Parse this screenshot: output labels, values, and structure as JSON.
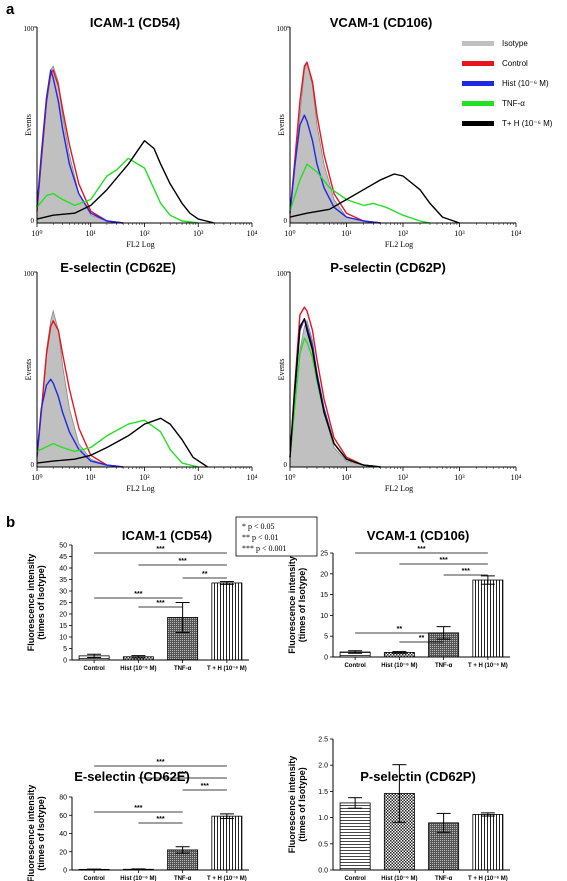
{
  "panel_labels": [
    "a",
    "b"
  ],
  "legend": {
    "entries": [
      {
        "label": "Isotype",
        "color": "#c0c0c0"
      },
      {
        "label": "Control",
        "color": "#e8141e"
      },
      {
        "label": "Hist (10⁻⁶ M)",
        "color": "#1e28e6"
      },
      {
        "label": "TNF-α",
        "color": "#22e022"
      },
      {
        "label": "T+ H (10⁻⁶ M)",
        "color": "#000000"
      }
    ]
  },
  "significance_key": [
    "* p < 0.05",
    "** p < 0.01",
    "*** p < 0.001"
  ],
  "chart_data": [
    {
      "type": "line",
      "title": "ICAM-1 (CD54)",
      "xlabel": "FL2 Log",
      "ylabel": "Events",
      "x_scale": "log",
      "xlim": [
        1,
        10000
      ],
      "ylim": [
        0,
        100
      ],
      "x_ticks": [
        "10⁰",
        "10¹",
        "10²",
        "10³",
        "10⁴"
      ],
      "y_ticks": [
        "0",
        "100"
      ],
      "series": [
        {
          "name": "Isotype",
          "x": [
            1,
            1.2,
            1.5,
            1.8,
            2,
            2.5,
            3,
            4,
            6,
            10,
            20,
            40
          ],
          "y": [
            5,
            30,
            60,
            78,
            80,
            72,
            55,
            35,
            15,
            4,
            1,
            0
          ]
        },
        {
          "name": "Control",
          "x": [
            1,
            1.2,
            1.5,
            1.8,
            2,
            2.5,
            3,
            4,
            6,
            10,
            20,
            40
          ],
          "y": [
            6,
            32,
            62,
            76,
            78,
            70,
            58,
            40,
            20,
            6,
            1,
            0
          ]
        },
        {
          "name": "Hist (10⁻⁶ M)",
          "x": [
            1,
            1.2,
            1.5,
            1.8,
            2,
            2.5,
            3,
            4,
            6,
            10,
            20,
            40
          ],
          "y": [
            8,
            35,
            64,
            78,
            74,
            62,
            48,
            30,
            15,
            5,
            1,
            0
          ]
        },
        {
          "name": "TNF-α",
          "x": [
            1,
            1.5,
            2,
            3,
            5,
            10,
            20,
            30,
            50,
            100,
            200,
            300,
            500,
            1000
          ],
          "y": [
            8,
            14,
            15,
            12,
            9,
            12,
            24,
            27,
            33,
            28,
            10,
            4,
            1,
            0
          ]
        },
        {
          "name": "T+ H (10⁻⁶ M)",
          "x": [
            1,
            2,
            5,
            10,
            20,
            50,
            100,
            150,
            200,
            300,
            500,
            700,
            1000,
            2000
          ],
          "y": [
            2,
            4,
            5,
            9,
            17,
            30,
            42,
            38,
            30,
            20,
            10,
            5,
            2,
            0
          ]
        }
      ]
    },
    {
      "type": "line",
      "title": "VCAM-1 (CD106)",
      "xlabel": "FL2 Log",
      "ylabel": "Events",
      "x_scale": "log",
      "xlim": [
        1,
        10000
      ],
      "ylim": [
        0,
        100
      ],
      "x_ticks": [
        "10⁰",
        "10¹",
        "10²",
        "10³",
        "10⁴"
      ],
      "y_ticks": [
        "0",
        "100"
      ],
      "series": [
        {
          "name": "Isotype",
          "x": [
            1,
            1.2,
            1.5,
            1.8,
            2,
            2.5,
            3,
            4,
            6,
            10,
            20,
            40
          ],
          "y": [
            4,
            25,
            55,
            78,
            82,
            70,
            50,
            30,
            12,
            3,
            1,
            0
          ]
        },
        {
          "name": "Control",
          "x": [
            1,
            1.2,
            1.5,
            1.8,
            2,
            2.5,
            3,
            4,
            6,
            10,
            20,
            40
          ],
          "y": [
            5,
            30,
            62,
            80,
            82,
            72,
            55,
            35,
            15,
            5,
            1,
            0
          ]
        },
        {
          "name": "Hist (10⁻⁶ M)",
          "x": [
            1,
            1.2,
            1.5,
            1.8,
            2,
            2.5,
            3,
            4,
            6,
            10,
            20,
            40
          ],
          "y": [
            5,
            28,
            50,
            55,
            52,
            42,
            30,
            18,
            8,
            3,
            1,
            0
          ]
        },
        {
          "name": "TNF-α",
          "x": [
            1,
            1.5,
            2,
            3,
            5,
            10,
            20,
            30,
            50,
            100,
            200,
            300
          ],
          "y": [
            6,
            22,
            30,
            26,
            18,
            12,
            9,
            10,
            8,
            4,
            1,
            0
          ]
        },
        {
          "name": "T+ H (10⁻⁶ M)",
          "x": [
            1,
            2,
            5,
            10,
            20,
            40,
            70,
            100,
            200,
            300,
            500,
            1000
          ],
          "y": [
            3,
            5,
            7,
            12,
            17,
            22,
            25,
            24,
            17,
            10,
            3,
            0
          ]
        }
      ]
    },
    {
      "type": "line",
      "title": "E-selectin (CD62E)",
      "xlabel": "FL2 Log",
      "ylabel": "Events",
      "x_scale": "log",
      "xlim": [
        1,
        10000
      ],
      "ylim": [
        0,
        100
      ],
      "x_ticks": [
        "10⁰",
        "10¹",
        "10²",
        "10³",
        "10⁴"
      ],
      "y_ticks": [
        "0",
        "100"
      ],
      "series": [
        {
          "name": "Isotype",
          "x": [
            1,
            1.2,
            1.5,
            1.8,
            2,
            2.5,
            3,
            4,
            6,
            10,
            20,
            40
          ],
          "y": [
            5,
            30,
            60,
            75,
            80,
            70,
            52,
            30,
            12,
            4,
            1,
            0
          ]
        },
        {
          "name": "Control",
          "x": [
            1,
            1.2,
            1.5,
            1.8,
            2,
            2.5,
            3,
            4,
            6,
            10,
            20,
            40
          ],
          "y": [
            5,
            28,
            58,
            72,
            75,
            70,
            58,
            40,
            20,
            6,
            1,
            0
          ]
        },
        {
          "name": "Hist (10⁻⁶ M)",
          "x": [
            1,
            1.2,
            1.5,
            1.8,
            2,
            2.5,
            3,
            4,
            6,
            10,
            20,
            40
          ],
          "y": [
            6,
            30,
            42,
            45,
            43,
            36,
            28,
            18,
            9,
            3,
            1,
            0
          ]
        },
        {
          "name": "TNF-α",
          "x": [
            1,
            2,
            3,
            5,
            10,
            20,
            50,
            100,
            200,
            300,
            500,
            1000
          ],
          "y": [
            8,
            12,
            10,
            8,
            10,
            16,
            22,
            24,
            18,
            9,
            2,
            0
          ]
        },
        {
          "name": "T+ H (10⁻⁶ M)",
          "x": [
            1,
            2,
            5,
            10,
            20,
            50,
            100,
            200,
            300,
            500,
            800,
            1500
          ],
          "y": [
            2,
            3,
            4,
            6,
            10,
            16,
            22,
            25,
            22,
            14,
            5,
            0
          ]
        }
      ]
    },
    {
      "type": "line",
      "title": "P-selectin (CD62P)",
      "xlabel": "FL2 Log",
      "ylabel": "Events",
      "x_scale": "log",
      "xlim": [
        1,
        10000
      ],
      "ylim": [
        0,
        100
      ],
      "x_ticks": [
        "10⁰",
        "10¹",
        "10²",
        "10³",
        "10⁴"
      ],
      "y_ticks": [
        "0",
        "100"
      ],
      "series": [
        {
          "name": "Isotype",
          "x": [
            1,
            1.2,
            1.5,
            1.8,
            2,
            2.5,
            3,
            4,
            6,
            10,
            20,
            40
          ],
          "y": [
            4,
            28,
            60,
            72,
            75,
            65,
            48,
            28,
            10,
            3,
            1,
            0
          ]
        },
        {
          "name": "Control",
          "x": [
            1,
            1.2,
            1.5,
            1.8,
            2,
            2.5,
            3,
            4,
            6,
            10,
            20,
            40
          ],
          "y": [
            5,
            40,
            78,
            82,
            80,
            70,
            55,
            35,
            15,
            5,
            1,
            0
          ]
        },
        {
          "name": "Hist (10⁻⁶ M)",
          "x": [
            1,
            1.2,
            1.5,
            1.8,
            2,
            2.5,
            3,
            4,
            6,
            10,
            20,
            40
          ],
          "y": [
            5,
            35,
            70,
            76,
            72,
            62,
            48,
            30,
            12,
            4,
            1,
            0
          ]
        },
        {
          "name": "TNF-α",
          "x": [
            1,
            1.2,
            1.5,
            1.8,
            2,
            2.5,
            3,
            4,
            6,
            10,
            20,
            40
          ],
          "y": [
            5,
            30,
            58,
            66,
            64,
            56,
            44,
            28,
            12,
            4,
            1,
            0
          ]
        },
        {
          "name": "T+ H (10⁻⁶ M)",
          "x": [
            1,
            1.2,
            1.5,
            1.8,
            2,
            2.5,
            3,
            4,
            6,
            10,
            20,
            40
          ],
          "y": [
            5,
            38,
            72,
            76,
            70,
            60,
            46,
            28,
            12,
            4,
            1,
            0
          ]
        }
      ]
    },
    {
      "type": "bar",
      "title": "ICAM-1 (CD54)",
      "ylabel": "Fluorescence intensity (times of Isotype)",
      "categories": [
        "Control",
        "Hist (10⁻⁶ M)",
        "TNF-α",
        "T + H (10⁻⁶ M)"
      ],
      "values": [
        1.8,
        1.4,
        18.5,
        33.5
      ],
      "errors": [
        0.7,
        0.5,
        6.5,
        0.6
      ],
      "ylim": [
        0,
        50
      ],
      "y_ticks": [
        0,
        5,
        10,
        15,
        20,
        25,
        30,
        35,
        40,
        45,
        50
      ],
      "significance": [
        {
          "from": 0,
          "to": 3,
          "label": "***"
        },
        {
          "from": 1,
          "to": 3,
          "label": "***"
        },
        {
          "from": 2,
          "to": 3,
          "label": "**"
        },
        {
          "from": 0,
          "to": 2,
          "label": "***"
        },
        {
          "from": 1,
          "to": 2,
          "label": "***"
        }
      ]
    },
    {
      "type": "bar",
      "title": "VCAM-1 (CD106)",
      "ylabel": "Fluorescence intensity (times of Isotype)",
      "categories": [
        "Control",
        "Hist (10⁻⁶ M)",
        "TNF-α",
        "T + H (10⁻⁶ M)"
      ],
      "values": [
        1.2,
        1.1,
        5.8,
        18.5
      ],
      "errors": [
        0.3,
        0.2,
        1.5,
        1.0
      ],
      "ylim": [
        0,
        25
      ],
      "y_ticks": [
        0,
        5,
        10,
        15,
        20,
        25
      ],
      "significance": [
        {
          "from": 0,
          "to": 3,
          "label": "***"
        },
        {
          "from": 1,
          "to": 3,
          "label": "***"
        },
        {
          "from": 2,
          "to": 3,
          "label": "***"
        },
        {
          "from": 0,
          "to": 2,
          "label": "**"
        },
        {
          "from": 1,
          "to": 2,
          "label": "**"
        }
      ]
    },
    {
      "type": "bar",
      "title": "E-selectin (CD62E)",
      "ylabel": "Fluorescence intensity (times of Isotype)",
      "categories": [
        "Control",
        "Hist (10⁻⁶ M)",
        "TNF-α",
        "T + H (10⁻⁶ M)"
      ],
      "values": [
        0.7,
        0.8,
        22,
        59
      ],
      "errors": [
        0.3,
        0.4,
        3.5,
        2.5
      ],
      "ylim": [
        0,
        80
      ],
      "y_ticks": [
        0,
        20,
        40,
        60,
        80
      ],
      "significance": [
        {
          "from": 0,
          "to": 3,
          "label": "***"
        },
        {
          "from": 1,
          "to": 3,
          "label": "***"
        },
        {
          "from": 2,
          "to": 3,
          "label": "***"
        },
        {
          "from": 0,
          "to": 2,
          "label": "***"
        },
        {
          "from": 1,
          "to": 2,
          "label": "***"
        }
      ]
    },
    {
      "type": "bar",
      "title": "P-selectin (CD62P)",
      "ylabel": "Fluorescence intensity (times of Isotype)",
      "categories": [
        "Control",
        "Hist (10⁻⁶ M)",
        "TNF-α",
        "T + H (10⁻⁶ M)"
      ],
      "values": [
        1.28,
        1.46,
        0.9,
        1.06
      ],
      "errors": [
        0.1,
        0.55,
        0.18,
        0.03
      ],
      "ylim": [
        0,
        2.5
      ],
      "y_ticks": [
        0.0,
        0.5,
        1.0,
        1.5,
        2.0,
        2.5
      ],
      "significance": []
    }
  ]
}
